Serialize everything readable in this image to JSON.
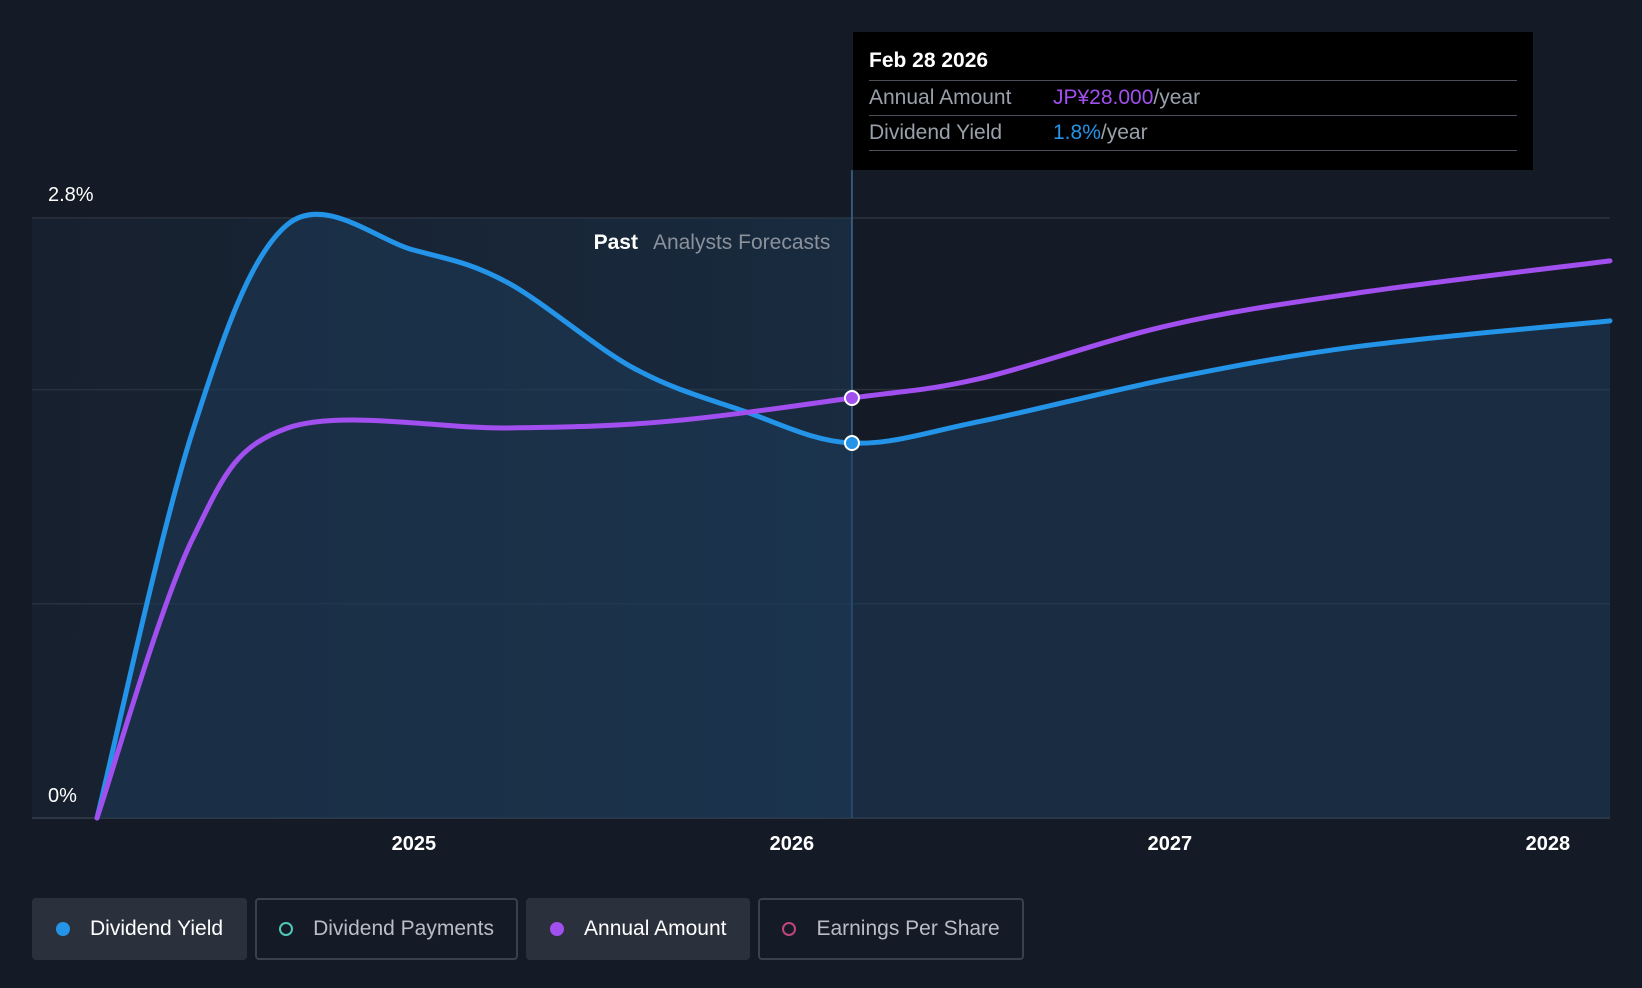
{
  "chart_data": {
    "type": "line",
    "y_axis_labels": {
      "top": "2.8%",
      "bottom": "0%"
    },
    "ylim": [
      0,
      2.8
    ],
    "x_ticks": [
      "2025",
      "2026",
      "2027",
      "2028"
    ],
    "x_range": [
      "2024-03-01",
      "2028-03-01"
    ],
    "grid": true,
    "regions": {
      "past_label": "Past",
      "forecast_label": "Analysts Forecasts"
    },
    "series": [
      {
        "name": "Dividend Yield",
        "color": "#2394e8",
        "filled": true,
        "points": [
          [
            "2024-03-01",
            0
          ],
          [
            "2024-06-01",
            1.8
          ],
          [
            "2024-09-01",
            2.77
          ],
          [
            "2025-01-01",
            2.65
          ],
          [
            "2025-04-01",
            2.5
          ],
          [
            "2025-08-01",
            2.1
          ],
          [
            "2025-11-15",
            1.9
          ],
          [
            "2026-02-28",
            1.75
          ],
          [
            "2026-07-01",
            1.85
          ],
          [
            "2027-01-01",
            2.05
          ],
          [
            "2027-07-01",
            2.2
          ],
          [
            "2028-03-01",
            2.32
          ]
        ]
      },
      {
        "name": "Annual Amount",
        "color": "#a24ff0",
        "filled": false,
        "points": [
          [
            "2024-03-01",
            0
          ],
          [
            "2024-06-01",
            1.3
          ],
          [
            "2024-09-01",
            1.82
          ],
          [
            "2025-04-01",
            1.82
          ],
          [
            "2025-09-01",
            1.85
          ],
          [
            "2026-02-28",
            1.96
          ],
          [
            "2026-07-01",
            2.05
          ],
          [
            "2027-01-01",
            2.3
          ],
          [
            "2027-07-01",
            2.45
          ],
          [
            "2028-03-01",
            2.6
          ]
        ]
      }
    ],
    "highlight_date": "2026-02-28"
  },
  "tooltip": {
    "date": "Feb 28 2026",
    "rows": [
      {
        "label": "Annual Amount",
        "value": "JP¥28.000",
        "unit": "/year",
        "color": "#a24ff0"
      },
      {
        "label": "Dividend Yield",
        "value": "1.8%",
        "unit": "/year",
        "color": "#2394e8"
      }
    ]
  },
  "legend": [
    {
      "label": "Dividend Yield",
      "color": "#2394e8",
      "filled": true,
      "active": true
    },
    {
      "label": "Dividend Payments",
      "color": "#4fc8b8",
      "filled": false,
      "active": false
    },
    {
      "label": "Annual Amount",
      "color": "#a24ff0",
      "filled": true,
      "active": true
    },
    {
      "label": "Earnings Per Share",
      "color": "#c0457a",
      "filled": false,
      "active": false
    }
  ]
}
